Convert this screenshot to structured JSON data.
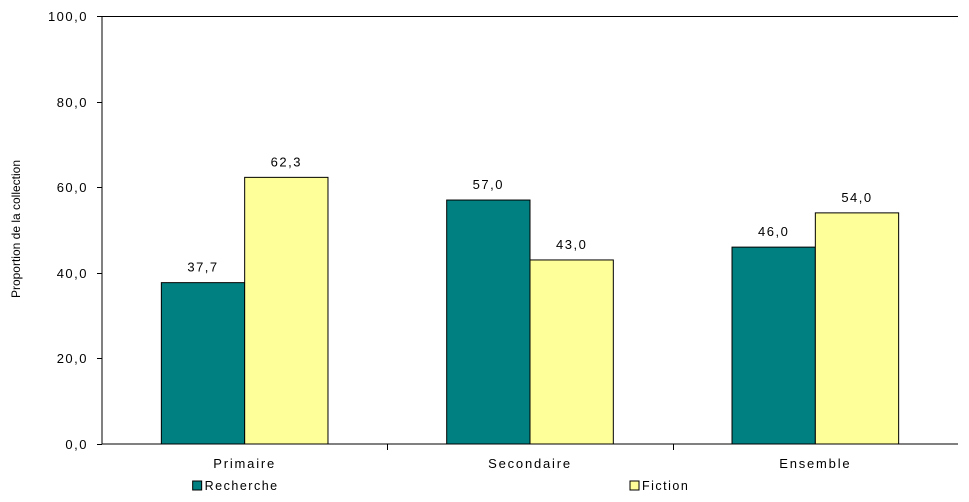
{
  "chart_data": {
    "type": "bar",
    "title": "",
    "xlabel": "",
    "ylabel": "Proportion de la collection",
    "categories": [
      "Primaire",
      "Secondaire",
      "Ensemble"
    ],
    "series": [
      {
        "name": "Recherche",
        "color": "#008080",
        "values": [
          37.7,
          57.0,
          46.0
        ],
        "labels": [
          "37,7",
          "57,0",
          "46,0"
        ]
      },
      {
        "name": "Fiction",
        "color": "#ffff99",
        "values": [
          62.3,
          43.0,
          54.0
        ],
        "labels": [
          "62,3",
          "43,0",
          "54,0"
        ]
      }
    ],
    "ylim": [
      0,
      100
    ],
    "yticks": [
      0,
      20,
      40,
      60,
      80,
      100
    ],
    "ytick_labels": [
      "0,0",
      "20,0",
      "40,0",
      "60,0",
      "80,0",
      "100,0"
    ],
    "grid": false,
    "legend_position": "bottom"
  }
}
